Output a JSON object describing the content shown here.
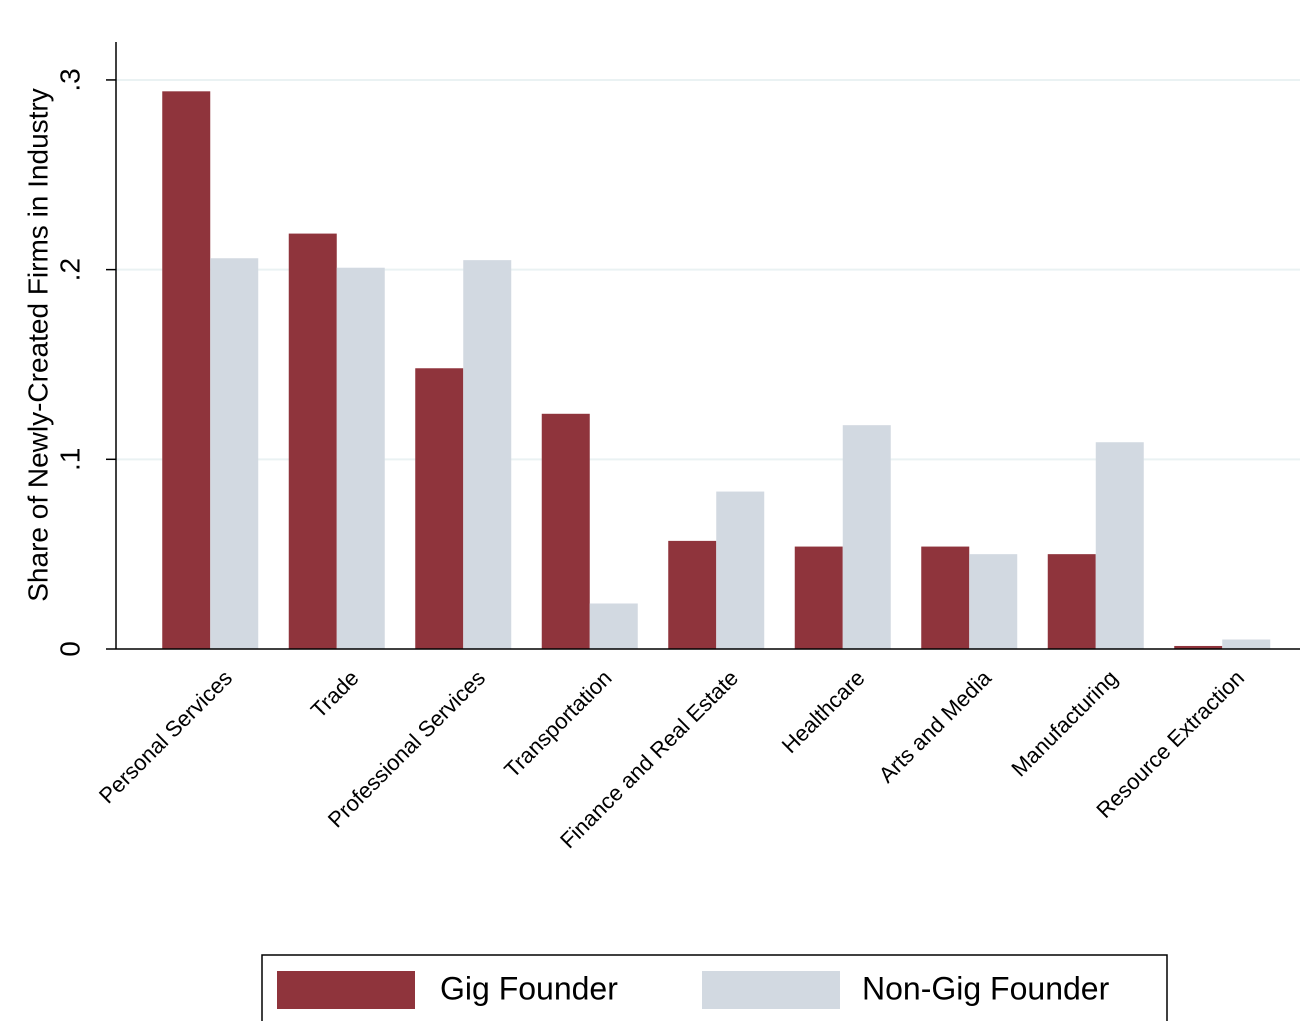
{
  "chart_data": {
    "type": "bar",
    "y_label": "Share of Newly-Created Firms in Industry",
    "categories": [
      "Personal Services",
      "Trade",
      "Professional Services",
      "Transportation",
      "Finance and Real Estate",
      "Healthcare",
      "Arts and Media",
      "Manufacturing",
      "Resource Extraction"
    ],
    "series": [
      {
        "name": "Gig Founder",
        "color": "#8f343c",
        "values": [
          0.294,
          0.219,
          0.148,
          0.124,
          0.057,
          0.054,
          0.054,
          0.05,
          0.0016
        ]
      },
      {
        "name": "Non-Gig Founder",
        "color": "#d2d9e1",
        "values": [
          0.206,
          0.201,
          0.205,
          0.024,
          0.083,
          0.118,
          0.05,
          0.109,
          0.005
        ]
      }
    ],
    "ylim": [
      0,
      0.32
    ],
    "yticks": [
      0,
      {
        "value": 0.1,
        "label": ".1"
      },
      {
        "value": 0.2,
        "label": ".2"
      },
      {
        "value": 0.3,
        "label": ".3"
      }
    ],
    "grid": true,
    "legend": "bottom"
  }
}
